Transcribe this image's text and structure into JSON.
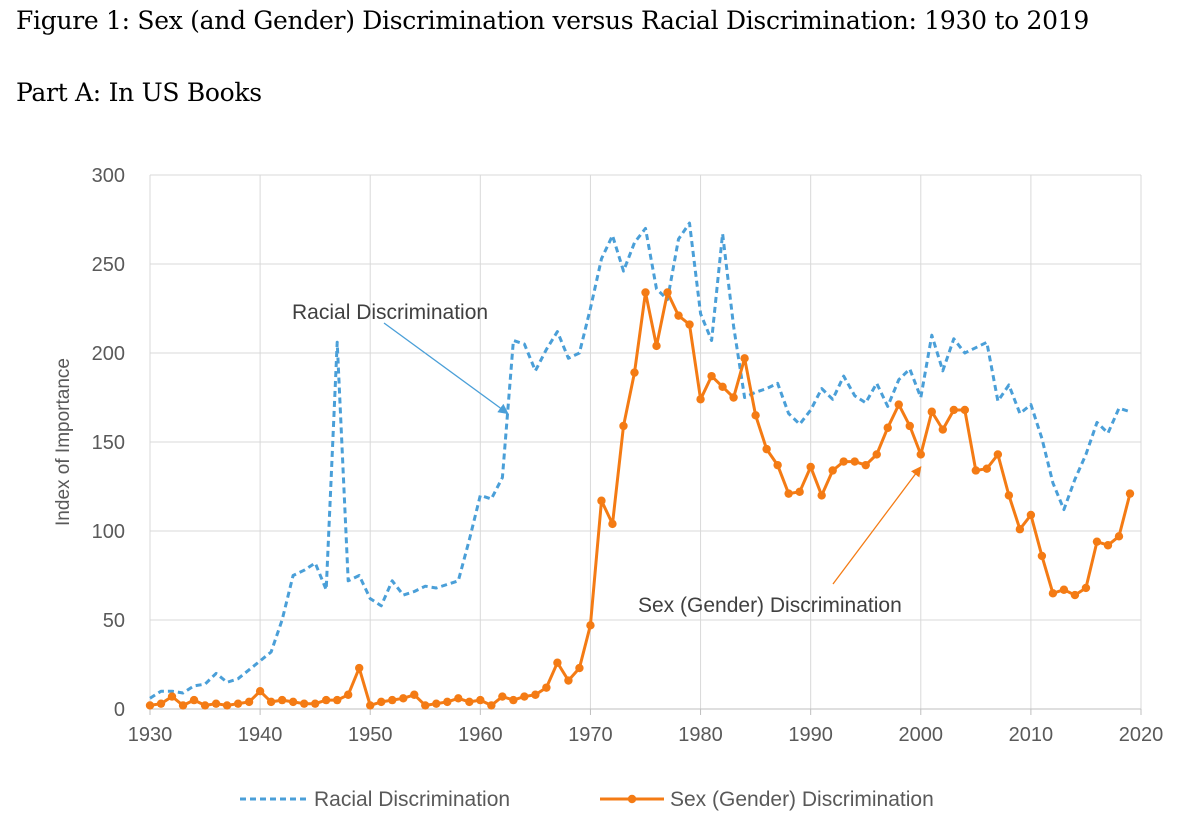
{
  "figure": {
    "title": "Figure 1: Sex (and Gender) Discrimination versus Racial Discrimination: 1930 to 2019",
    "subtitle": "Part A: In US Books"
  },
  "chart_data": {
    "type": "line",
    "ylabel": "Index of Importance",
    "xlabel": "",
    "xlim": [
      1930,
      2020
    ],
    "ylim": [
      0,
      300
    ],
    "x_ticks": [
      1930,
      1940,
      1950,
      1960,
      1970,
      1980,
      1990,
      2000,
      2010,
      2020
    ],
    "y_ticks": [
      0,
      50,
      100,
      150,
      200,
      250,
      300
    ],
    "grid": true,
    "legend_position": "bottom",
    "x": [
      1930,
      1931,
      1932,
      1933,
      1934,
      1935,
      1936,
      1937,
      1938,
      1939,
      1940,
      1941,
      1942,
      1943,
      1944,
      1945,
      1946,
      1947,
      1948,
      1949,
      1950,
      1951,
      1952,
      1953,
      1954,
      1955,
      1956,
      1957,
      1958,
      1959,
      1960,
      1961,
      1962,
      1963,
      1964,
      1965,
      1966,
      1967,
      1968,
      1969,
      1970,
      1971,
      1972,
      1973,
      1974,
      1975,
      1976,
      1977,
      1978,
      1979,
      1980,
      1981,
      1982,
      1983,
      1984,
      1985,
      1986,
      1987,
      1988,
      1989,
      1990,
      1991,
      1992,
      1993,
      1994,
      1995,
      1996,
      1997,
      1998,
      1999,
      2000,
      2001,
      2002,
      2003,
      2004,
      2005,
      2006,
      2007,
      2008,
      2009,
      2010,
      2011,
      2012,
      2013,
      2014,
      2015,
      2016,
      2017,
      2018,
      2019
    ],
    "series": [
      {
        "name": "Racial Discrimination",
        "color": "#4a9fd8",
        "style": "dashed",
        "values": [
          6,
          10,
          10,
          9,
          13,
          14,
          20,
          15,
          17,
          22,
          27,
          32,
          50,
          75,
          78,
          82,
          67,
          206,
          72,
          75,
          62,
          58,
          72,
          64,
          66,
          69,
          68,
          70,
          72,
          95,
          120,
          118,
          130,
          207,
          205,
          190,
          202,
          212,
          197,
          200,
          225,
          253,
          266,
          246,
          262,
          270,
          236,
          230,
          264,
          273,
          222,
          207,
          267,
          215,
          175,
          178,
          180,
          183,
          166,
          160,
          168,
          180,
          174,
          187,
          176,
          172,
          183,
          170,
          185,
          191,
          175,
          210,
          190,
          208,
          200,
          203,
          206,
          173,
          182,
          166,
          171,
          152,
          127,
          112,
          129,
          143,
          161,
          155,
          169,
          167
        ]
      },
      {
        "name": "Sex (Gender) Discrimination",
        "color": "#f47b14",
        "style": "solid",
        "values": [
          2,
          3,
          7,
          2,
          5,
          2,
          3,
          2,
          3,
          4,
          10,
          4,
          5,
          4,
          3,
          3,
          5,
          5,
          8,
          23,
          2,
          4,
          5,
          6,
          8,
          2,
          3,
          4,
          6,
          4,
          5,
          2,
          7,
          5,
          7,
          8,
          12,
          26,
          16,
          23,
          47,
          117,
          104,
          159,
          189,
          234,
          204,
          234,
          221,
          216,
          174,
          187,
          181,
          175,
          197,
          165,
          146,
          137,
          121,
          122,
          136,
          120,
          134,
          139,
          139,
          137,
          143,
          158,
          171,
          159,
          143,
          167,
          157,
          168,
          168,
          134,
          135,
          143,
          120,
          101,
          109,
          86,
          65,
          67,
          64,
          68,
          94,
          92,
          97,
          121
        ]
      }
    ],
    "annotations": [
      {
        "text": "Racial Discrimination",
        "series": 0,
        "arrow_to": [
          1962.5,
          166
        ]
      },
      {
        "text": "Sex (Gender) Discrimination",
        "series": 1,
        "arrow_to": [
          2000,
          136
        ]
      }
    ]
  }
}
